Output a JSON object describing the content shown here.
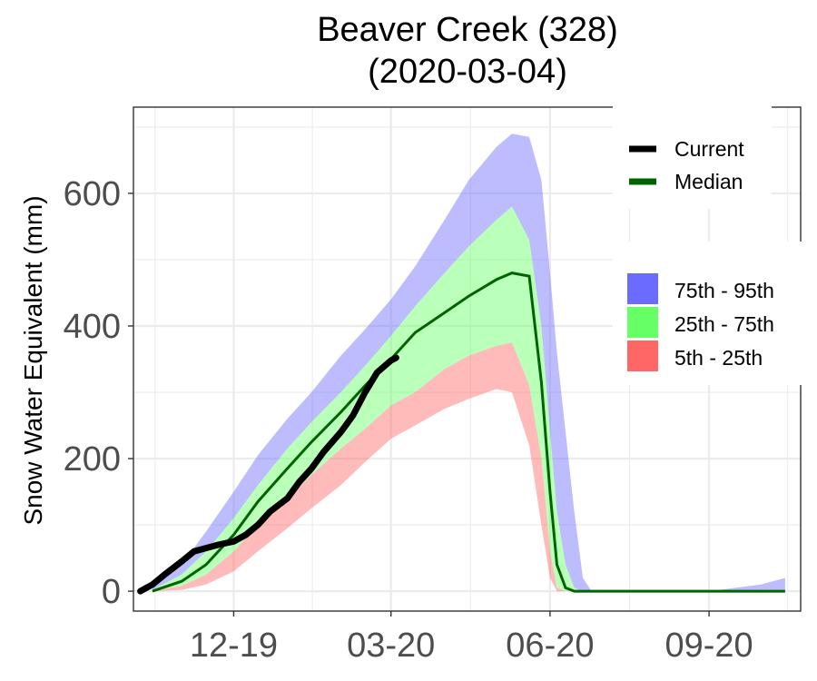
{
  "chart_data": {
    "type": "area",
    "title": "Beaver Creek (328)",
    "subtitle": "(2020-03-04)",
    "xlabel": "",
    "ylabel": "Snow Water Equivalent (mm)",
    "x_tick_labels": [
      "12-19",
      "03-20",
      "06-20",
      "09-20"
    ],
    "x_tick_dates": [
      "2019-12-01",
      "2020-03-01",
      "2020-06-01",
      "2020-09-01"
    ],
    "xlim": [
      "2019-10-04",
      "2020-10-24"
    ],
    "y_ticks": [
      0,
      200,
      400,
      600
    ],
    "ylim": [
      -30,
      730
    ],
    "grid": true,
    "legend_position": "top-right",
    "colors": {
      "current": "#000000",
      "median": "#006400",
      "p75_95": "#6b6bff",
      "p25_75": "#66ff66",
      "p5_25": "#ff6666",
      "grid": "#ebebeb",
      "axis_text": "#4d4d4d"
    },
    "line_legend": [
      {
        "key": "current",
        "label": "Current"
      },
      {
        "key": "median",
        "label": "Median"
      }
    ],
    "band_legend": [
      {
        "key": "p75_95",
        "label": "75th - 95th"
      },
      {
        "key": "p25_75",
        "label": "25th - 75th"
      },
      {
        "key": "p5_25",
        "label": "5th - 25th"
      }
    ],
    "x": [
      "2019-10-15",
      "2019-11-01",
      "2019-11-15",
      "2019-12-01",
      "2019-12-15",
      "2020-01-01",
      "2020-01-15",
      "2020-02-01",
      "2020-02-15",
      "2020-03-01",
      "2020-03-15",
      "2020-04-01",
      "2020-04-15",
      "2020-05-01",
      "2020-05-10",
      "2020-05-20",
      "2020-05-27",
      "2020-06-01",
      "2020-06-05",
      "2020-06-10",
      "2020-06-15",
      "2020-06-20",
      "2020-06-25",
      "2020-07-01",
      "2020-08-01",
      "2020-09-01",
      "2020-10-01",
      "2020-10-15"
    ],
    "series": [
      {
        "key": "p95",
        "values": [
          5,
          40,
          90,
          150,
          205,
          260,
          300,
          355,
          395,
          440,
          490,
          560,
          620,
          670,
          690,
          685,
          620,
          480,
          360,
          240,
          120,
          20,
          0,
          0,
          0,
          0,
          10,
          20
        ]
      },
      {
        "key": "p75",
        "values": [
          2,
          25,
          60,
          110,
          160,
          215,
          255,
          300,
          340,
          385,
          430,
          480,
          520,
          560,
          580,
          530,
          400,
          240,
          120,
          40,
          5,
          0,
          0,
          0,
          0,
          0,
          0,
          0
        ]
      },
      {
        "key": "median",
        "values": [
          0,
          15,
          40,
          85,
          135,
          185,
          225,
          270,
          310,
          350,
          390,
          420,
          445,
          470,
          480,
          475,
          315,
          150,
          40,
          5,
          0,
          0,
          0,
          0,
          0,
          0,
          0,
          0
        ]
      },
      {
        "key": "p25",
        "values": [
          0,
          8,
          25,
          60,
          100,
          140,
          175,
          215,
          245,
          280,
          300,
          335,
          355,
          370,
          375,
          310,
          200,
          60,
          5,
          0,
          0,
          0,
          0,
          0,
          0,
          0,
          0,
          0
        ]
      },
      {
        "key": "p5",
        "values": [
          0,
          2,
          10,
          30,
          60,
          95,
          125,
          160,
          195,
          230,
          250,
          275,
          290,
          305,
          300,
          220,
          100,
          20,
          0,
          0,
          0,
          0,
          0,
          0,
          0,
          0,
          0,
          0
        ]
      }
    ],
    "current": {
      "x": [
        "2019-10-08",
        "2019-10-15",
        "2019-10-22",
        "2019-11-01",
        "2019-11-08",
        "2019-11-15",
        "2019-11-22",
        "2019-12-01",
        "2019-12-08",
        "2019-12-15",
        "2019-12-22",
        "2020-01-01",
        "2020-01-08",
        "2020-01-15",
        "2020-01-22",
        "2020-02-01",
        "2020-02-08",
        "2020-02-15",
        "2020-02-22",
        "2020-03-01",
        "2020-03-04"
      ],
      "values": [
        0,
        10,
        25,
        45,
        60,
        65,
        70,
        75,
        85,
        100,
        120,
        140,
        165,
        185,
        210,
        240,
        265,
        300,
        330,
        348,
        352
      ]
    }
  }
}
